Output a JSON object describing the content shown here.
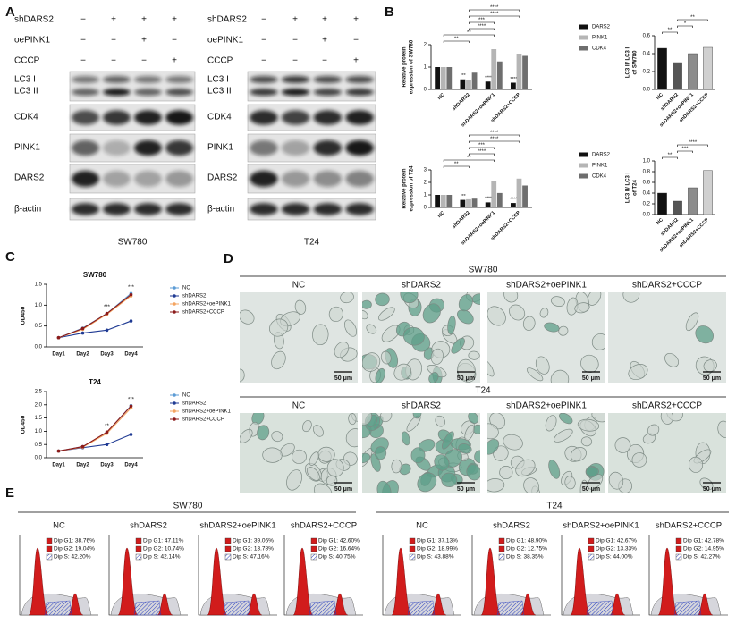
{
  "panel_a": {
    "letter": "A",
    "blots": [
      {
        "cell_line": "SW780",
        "conditions": [
          {
            "name": "shDARS2",
            "signs": [
              "−",
              "+",
              "+",
              "+"
            ]
          },
          {
            "name": "oePINK1",
            "signs": [
              "−",
              "−",
              "+",
              "−"
            ]
          },
          {
            "name": "CCCP",
            "signs": [
              "−",
              "−",
              "−",
              "+"
            ]
          }
        ],
        "proteins": [
          "LC3 I",
          "LC3 II",
          "CDK4",
          "PINK1",
          "DARS2",
          "β-actin"
        ]
      },
      {
        "cell_line": "T24",
        "conditions": [
          {
            "name": "shDARS2",
            "signs": [
              "−",
              "+",
              "+",
              "+"
            ]
          },
          {
            "name": "oePINK1",
            "signs": [
              "−",
              "−",
              "+",
              "−"
            ]
          },
          {
            "name": "CCCP",
            "signs": [
              "−",
              "−",
              "−",
              "+"
            ]
          }
        ],
        "proteins": [
          "LC3 I",
          "LC3 II",
          "CDK4",
          "PINK1",
          "DARS2",
          "β-actin"
        ]
      }
    ]
  },
  "panel_b": {
    "letter": "B"
  },
  "panel_c": {
    "letter": "C"
  },
  "chart_data": [
    {
      "type": "bar",
      "ylabel_lines": [
        "Relative protein",
        "expression of SW780"
      ],
      "categories": [
        "NC",
        "shDARS2",
        "shDARS2+oePINK1",
        "shDARS2+CCCP"
      ],
      "ylim": [
        0,
        2
      ],
      "yticks": [
        0,
        1,
        2
      ],
      "series": [
        {
          "name": "DARS2",
          "color": "#111111",
          "values": [
            1,
            0.45,
            0.35,
            0.3
          ],
          "star_labels": [
            null,
            "***",
            "****",
            "****"
          ]
        },
        {
          "name": "PINK1",
          "color": "#b5b5b5",
          "values": [
            1,
            0.4,
            1.8,
            1.6
          ],
          "star_labels": [
            null,
            null,
            null,
            null
          ]
        },
        {
          "name": "CDK4",
          "color": "#6e6e6e",
          "values": [
            1,
            0.75,
            1.25,
            1.5
          ],
          "star_labels": [
            null,
            null,
            null,
            null
          ]
        }
      ],
      "brackets": [
        {
          "text": "**",
          "from": 0,
          "to": 1
        },
        {
          "text": "**",
          "from": 0,
          "to": 2
        },
        {
          "text": "****",
          "from": 1,
          "to": 2
        },
        {
          "text": "***",
          "from": 1,
          "to": 2
        },
        {
          "text": "****",
          "from": 1,
          "to": 3
        },
        {
          "text": "****",
          "from": 1,
          "to": 3
        }
      ]
    },
    {
      "type": "bar",
      "ylabel_lines": [
        "LC3 II/ LC3 I",
        "of SW780"
      ],
      "categories": [
        "NC",
        "shDARS2",
        "shDARS2+oePINK1",
        "shDARS2+CCCP"
      ],
      "ylim": [
        0,
        0.6
      ],
      "yticks": [
        {
          "value": 0,
          "label": "0.0"
        },
        {
          "value": 0.2,
          "label": "0.2"
        },
        {
          "value": 0.4,
          "label": "0.4"
        },
        {
          "value": 0.6,
          "label": "0.6"
        }
      ],
      "values": [
        0.46,
        0.3,
        0.4,
        0.47
      ],
      "colors": [
        "#111111",
        "#555555",
        "#8c8c8c",
        "#d0d0d0"
      ],
      "brackets": [
        {
          "text": "**",
          "from": 0,
          "to": 1
        },
        {
          "text": "*",
          "from": 1,
          "to": 2
        },
        {
          "text": "**",
          "from": 1,
          "to": 3
        }
      ]
    },
    {
      "type": "bar",
      "ylabel_lines": [
        "Relative protein",
        "expression of T24"
      ],
      "categories": [
        "NC",
        "shDARS2",
        "shDARS2+oePINK1",
        "shDARS2+CCCP"
      ],
      "ylim": [
        0,
        3
      ],
      "yticks": [
        0,
        1,
        2,
        3
      ],
      "series": [
        {
          "name": "DARS2",
          "color": "#111111",
          "values": [
            1,
            0.6,
            0.4,
            0.35
          ],
          "star_labels": [
            null,
            "***",
            "****",
            "****"
          ]
        },
        {
          "name": "PINK1",
          "color": "#b5b5b5",
          "values": [
            1,
            0.65,
            2.1,
            2.3
          ],
          "star_labels": [
            null,
            null,
            null,
            null
          ]
        },
        {
          "name": "CDK4",
          "color": "#6e6e6e",
          "values": [
            1,
            0.7,
            1.15,
            1.75
          ],
          "star_labels": [
            null,
            null,
            null,
            null
          ]
        }
      ],
      "brackets": [
        {
          "text": "**",
          "from": 0,
          "to": 1
        },
        {
          "text": "**",
          "from": 0,
          "to": 2
        },
        {
          "text": "****",
          "from": 1,
          "to": 2
        },
        {
          "text": "***",
          "from": 1,
          "to": 2
        },
        {
          "text": "****",
          "from": 1,
          "to": 3
        },
        {
          "text": "****",
          "from": 1,
          "to": 3
        }
      ]
    },
    {
      "type": "bar",
      "ylabel_lines": [
        "LC3 II/ LC3 I",
        "of T24"
      ],
      "categories": [
        "NC",
        "shDARS2",
        "shDARS2+oePINK1",
        "shDARS2+CCCP"
      ],
      "ylim": [
        0,
        1
      ],
      "yticks": [
        {
          "value": 0,
          "label": "0.0"
        },
        {
          "value": 0.2,
          "label": "0.2"
        },
        {
          "value": 0.4,
          "label": "0.4"
        },
        {
          "value": 0.6,
          "label": "0.6"
        },
        {
          "value": 0.8,
          "label": "0.8"
        },
        {
          "value": 1,
          "label": "1.0"
        }
      ],
      "values": [
        0.4,
        0.25,
        0.5,
        0.82
      ],
      "colors": [
        "#111111",
        "#555555",
        "#8c8c8c",
        "#d0d0d0"
      ],
      "brackets": [
        {
          "text": "**",
          "from": 0,
          "to": 1
        },
        {
          "text": "***",
          "from": 1,
          "to": 2
        },
        {
          "text": "****",
          "from": 1,
          "to": 3
        }
      ]
    },
    {
      "type": "line",
      "title": "SW780",
      "ylabel": "OD450",
      "categories": [
        "Day1",
        "Day2",
        "Day3",
        "Day4"
      ],
      "ylim": [
        0,
        1.5
      ],
      "yticks": [
        {
          "value": 0,
          "label": "0.0"
        },
        {
          "value": 0.5,
          "label": "0.5"
        },
        {
          "value": 1,
          "label": "1.0"
        },
        {
          "value": 1.5,
          "label": "1.5"
        }
      ],
      "star_labels": [
        null,
        null,
        "***",
        "***"
      ],
      "series": [
        {
          "name": "NC",
          "color": "#5b9bd5",
          "values": [
            0.22,
            0.45,
            0.8,
            1.28
          ]
        },
        {
          "name": "shDARS2",
          "color": "#1f3a93",
          "values": [
            0.22,
            0.33,
            0.4,
            0.62
          ]
        },
        {
          "name": "shDARS2+oePINK1",
          "color": "#f4a460",
          "values": [
            0.22,
            0.42,
            0.78,
            1.22
          ]
        },
        {
          "name": "shDARS2+CCCP",
          "color": "#8b1a1a",
          "values": [
            0.22,
            0.44,
            0.8,
            1.25
          ]
        }
      ]
    },
    {
      "type": "line",
      "title": "T24",
      "ylabel": "OD450",
      "categories": [
        "Day1",
        "Day2",
        "Day3",
        "Day4"
      ],
      "ylim": [
        0,
        2.5
      ],
      "yticks": [
        {
          "value": 0,
          "label": "0.0"
        },
        {
          "value": 0.5,
          "label": "0.5"
        },
        {
          "value": 1,
          "label": "1.0"
        },
        {
          "value": 1.5,
          "label": "1.5"
        },
        {
          "value": 2,
          "label": "2.0"
        },
        {
          "value": 2.5,
          "label": "2.5"
        }
      ],
      "star_labels": [
        null,
        null,
        "**",
        "***"
      ],
      "series": [
        {
          "name": "NC",
          "color": "#5b9bd5",
          "values": [
            0.25,
            0.42,
            0.95,
            1.97
          ]
        },
        {
          "name": "shDARS2",
          "color": "#1f3a93",
          "values": [
            0.25,
            0.38,
            0.5,
            0.88
          ]
        },
        {
          "name": "shDARS2+oePINK1",
          "color": "#f4a460",
          "values": [
            0.25,
            0.4,
            0.92,
            1.88
          ]
        },
        {
          "name": "shDARS2+CCCP",
          "color": "#8b1a1a",
          "values": [
            0.25,
            0.42,
            0.97,
            1.95
          ]
        }
      ]
    }
  ],
  "panel_d": {
    "letter": "D",
    "scale_bar": "50 μm",
    "groups": [
      {
        "cell_line": "SW780",
        "conditions": [
          "NC",
          "shDARS2",
          "shDARS2+oePINK1",
          "shDARS2+CCCP"
        ]
      },
      {
        "cell_line": "T24",
        "conditions": [
          "NC",
          "shDARS2",
          "shDARS2+oePINK1",
          "shDARS2+CCCP"
        ]
      }
    ]
  },
  "panel_e": {
    "letter": "E",
    "groups": [
      {
        "cell_line": "SW780",
        "plots": [
          {
            "label": "NC",
            "stats": [
              "Dip G1: 38.76%",
              "Dip G2: 19.04%",
              "Dip S: 42.20%"
            ]
          },
          {
            "label": "shDARS2",
            "stats": [
              "Dip G1: 47.11%",
              "Dip G2: 10.74%",
              "Dip S: 42.14%"
            ]
          },
          {
            "label": "shDARS2+oePINK1",
            "stats": [
              "Dip G1: 39.06%",
              "Dip G2: 13.78%",
              "Dip S: 47.16%"
            ]
          },
          {
            "label": "shDARS2+CCCP",
            "stats": [
              "Dip G1: 42.60%",
              "Dip G2: 16.64%",
              "Dip S: 40.75%"
            ]
          }
        ]
      },
      {
        "cell_line": "T24",
        "plots": [
          {
            "label": "NC",
            "stats": [
              "Dip G1: 37.13%",
              "Dip G2: 18.99%",
              "Dip S: 43.88%"
            ]
          },
          {
            "label": "shDARS2",
            "stats": [
              "Dip G1: 48.90%",
              "Dip G2: 12.75%",
              "Dip S: 38.35%"
            ]
          },
          {
            "label": "shDARS2+oePINK1",
            "stats": [
              "Dip G1: 42.67%",
              "Dip G2: 13.33%",
              "Dip S: 44.00%"
            ]
          },
          {
            "label": "shDARS2+CCCP",
            "stats": [
              "Dip G1: 42.78%",
              "Dip G2: 14.95%",
              "Dip S: 42.27%"
            ]
          }
        ]
      }
    ]
  }
}
